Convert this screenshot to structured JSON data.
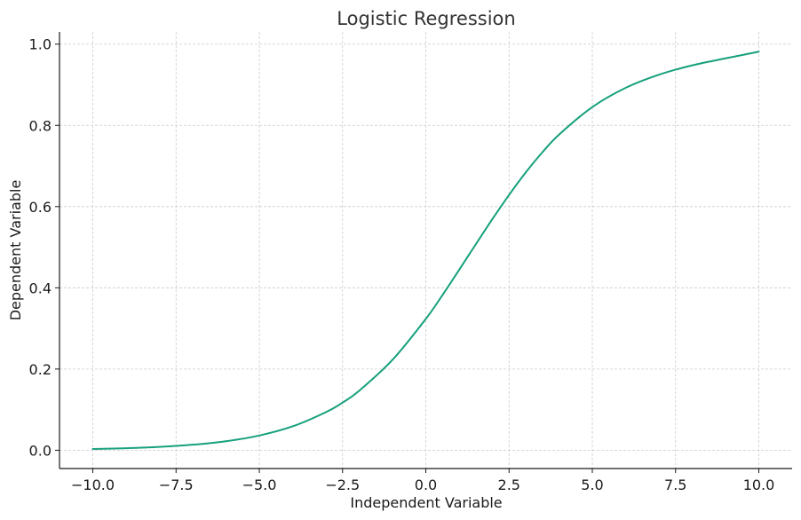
{
  "chart_data": {
    "type": "line",
    "title": "Logistic Regression",
    "xlabel": "Independent Variable",
    "ylabel": "Dependent Variable",
    "xlim": [
      -11,
      11
    ],
    "ylim": [
      -0.045,
      1.03
    ],
    "grid": true,
    "x_ticks": [
      -10,
      -7.5,
      -5,
      -2.5,
      0,
      2.5,
      5,
      7.5,
      10
    ],
    "x_tick_labels": [
      "−10.0",
      "−7.5",
      "−5.0",
      "−2.5",
      "0.0",
      "2.5",
      "5.0",
      "7.5",
      "10.0"
    ],
    "y_ticks": [
      0,
      0.2,
      0.4,
      0.6,
      0.8,
      1.0
    ],
    "y_tick_labels": [
      "0.0",
      "0.2",
      "0.4",
      "0.6",
      "0.8",
      "1.0"
    ],
    "colors": {
      "line": "#16a07c",
      "grid": "#cccccc",
      "axes": "#1a1a1a"
    },
    "series": [
      {
        "x": [
          -10,
          -9,
          -8,
          -7,
          -6,
          -5,
          -4,
          -3,
          -2.5,
          -2,
          -1,
          0,
          0.5,
          1,
          1.5,
          2,
          2.5,
          3,
          3.5,
          4,
          5,
          6,
          7,
          8,
          9,
          10
        ],
        "y": [
          0.0031,
          0.0051,
          0.0083,
          0.0136,
          0.0223,
          0.0363,
          0.0588,
          0.0938,
          0.1173,
          0.1465,
          0.2227,
          0.3234,
          0.3821,
          0.444,
          0.507,
          0.5693,
          0.6287,
          0.6839,
          0.7336,
          0.7772,
          0.845,
          0.8923,
          0.9247,
          0.9478,
          0.9649,
          0.9813
        ]
      }
    ]
  }
}
